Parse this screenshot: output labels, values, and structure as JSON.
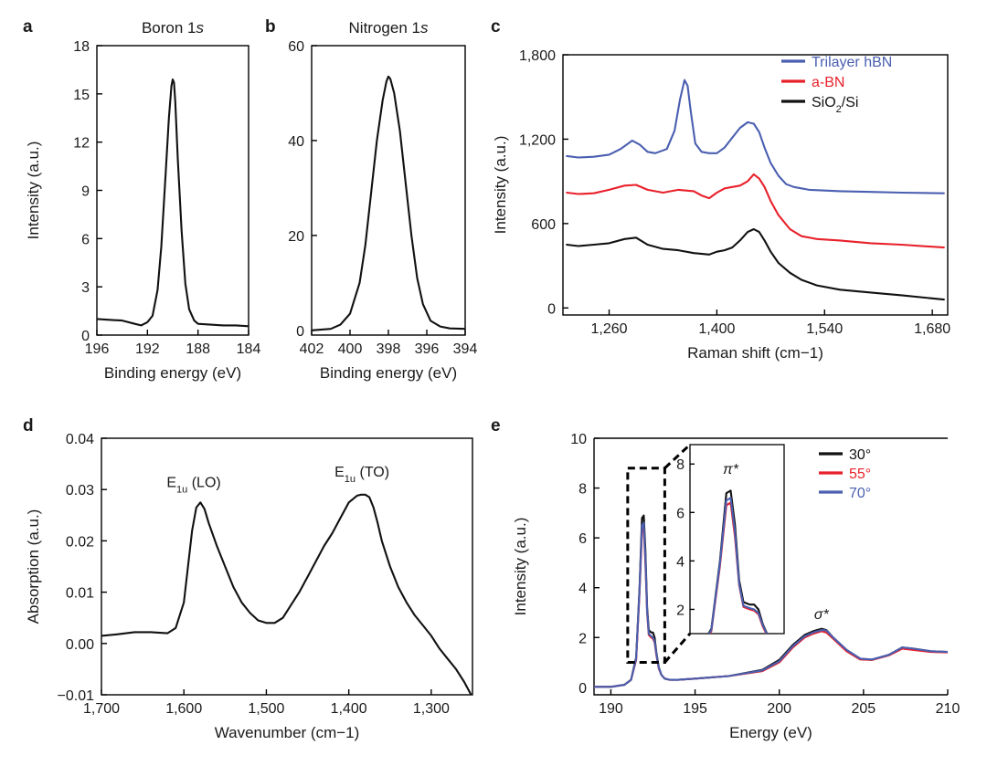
{
  "colors": {
    "black": "#111111",
    "red": "#e8212b",
    "blue": "#4a5fb0"
  },
  "chart_data": [
    {
      "id": "a",
      "panel_label": "a",
      "type": "line",
      "title_plain": "Boron 1",
      "title_italic": "s",
      "xlabel": "Binding energy (eV)",
      "ylabel": "Intensity (a.u.)",
      "xlim": [
        196,
        184
      ],
      "ylim": [
        0,
        18
      ],
      "xticks": [
        196,
        192,
        188,
        184
      ],
      "xtick_labels": [
        "196",
        "192",
        "188",
        "184"
      ],
      "yticks": [
        0,
        3,
        6,
        9,
        12,
        15,
        18
      ],
      "ytick_labels": [
        "0",
        "3",
        "6",
        "9",
        "12",
        "15",
        "18"
      ],
      "series": [
        {
          "name": "B 1s",
          "color": "#111111",
          "x": [
            196.0,
            195.0,
            194.0,
            193.0,
            192.5,
            192.0,
            191.6,
            191.2,
            190.9,
            190.6,
            190.3,
            190.1,
            190.0,
            189.9,
            189.8,
            189.6,
            189.3,
            189.0,
            188.7,
            188.3,
            188.0,
            187.0,
            186.0,
            185.0,
            184.0
          ],
          "y": [
            1.0,
            0.95,
            0.9,
            0.7,
            0.6,
            0.8,
            1.2,
            2.8,
            5.5,
            9.5,
            13.5,
            15.5,
            15.9,
            15.7,
            14.5,
            11.0,
            6.5,
            3.2,
            1.6,
            0.9,
            0.7,
            0.65,
            0.6,
            0.6,
            0.55
          ]
        }
      ]
    },
    {
      "id": "b",
      "panel_label": "b",
      "type": "line",
      "title_plain": "Nitrogen 1",
      "title_italic": "s",
      "xlabel": "Binding energy (eV)",
      "ylabel": "",
      "xlim": [
        402,
        394
      ],
      "ylim": [
        -1,
        60
      ],
      "xticks": [
        402,
        400,
        398,
        396,
        394
      ],
      "xtick_labels": [
        "402",
        "400",
        "398",
        "396",
        "394"
      ],
      "yticks": [
        0,
        20,
        40,
        60
      ],
      "ytick_labels": [
        "0",
        "20",
        "40",
        "60"
      ],
      "series": [
        {
          "name": "N 1s",
          "color": "#111111",
          "x": [
            402.0,
            401.0,
            400.5,
            400.0,
            399.5,
            399.2,
            398.9,
            398.6,
            398.3,
            398.1,
            398.0,
            397.9,
            397.7,
            397.4,
            397.1,
            396.8,
            396.5,
            396.2,
            395.8,
            395.3,
            394.8,
            394.0
          ],
          "y": [
            0.0,
            0.3,
            1.2,
            3.5,
            10.0,
            18.0,
            29.0,
            40.0,
            48.5,
            52.5,
            53.5,
            53.0,
            50.0,
            42.0,
            31.0,
            20.0,
            11.0,
            5.5,
            2.0,
            0.8,
            0.4,
            0.3
          ]
        }
      ]
    },
    {
      "id": "c",
      "panel_label": "c",
      "type": "line",
      "title": "",
      "xlabel": "Raman shift (cm−1)",
      "ylabel": "Intensity (a.u.)",
      "xlim": [
        1200,
        1700
      ],
      "ylim": [
        -50,
        1800
      ],
      "xticks": [
        1260,
        1400,
        1540,
        1680
      ],
      "xtick_labels": [
        "1,260",
        "1,400",
        "1,540",
        "1,680"
      ],
      "yticks": [
        0,
        600,
        1200,
        1800
      ],
      "ytick_labels": [
        "0",
        "600",
        "1,200",
        "1,800"
      ],
      "legend": {
        "position": "top-right",
        "entries": [
          {
            "label": "Trilayer hBN",
            "color": "#4a5fb0",
            "sub": ""
          },
          {
            "label": "a-BN",
            "color": "#e8212b",
            "sub": ""
          },
          {
            "label": "SiO",
            "color": "#111111",
            "sub": "2",
            "suffix": "/Si"
          }
        ]
      },
      "series": [
        {
          "name": "Trilayer hBN",
          "color": "#4a5fb0",
          "x": [
            1205,
            1220,
            1240,
            1260,
            1275,
            1290,
            1300,
            1310,
            1320,
            1335,
            1345,
            1352,
            1358,
            1362,
            1366,
            1372,
            1380,
            1390,
            1400,
            1410,
            1420,
            1430,
            1440,
            1448,
            1455,
            1462,
            1470,
            1480,
            1490,
            1500,
            1520,
            1560,
            1600,
            1640,
            1695
          ],
          "y": [
            1080,
            1070,
            1075,
            1090,
            1130,
            1190,
            1160,
            1110,
            1100,
            1130,
            1260,
            1480,
            1620,
            1580,
            1400,
            1170,
            1110,
            1100,
            1100,
            1140,
            1210,
            1280,
            1320,
            1310,
            1250,
            1140,
            1030,
            940,
            880,
            860,
            840,
            830,
            825,
            820,
            815
          ]
        },
        {
          "name": "a-BN",
          "color": "#e8212b",
          "x": [
            1205,
            1220,
            1240,
            1260,
            1280,
            1295,
            1310,
            1330,
            1350,
            1370,
            1380,
            1390,
            1400,
            1410,
            1420,
            1430,
            1440,
            1448,
            1455,
            1462,
            1470,
            1480,
            1495,
            1510,
            1530,
            1560,
            1600,
            1640,
            1695
          ],
          "y": [
            820,
            810,
            815,
            840,
            870,
            875,
            840,
            820,
            840,
            830,
            800,
            780,
            820,
            850,
            860,
            870,
            900,
            950,
            920,
            860,
            760,
            660,
            560,
            510,
            490,
            480,
            460,
            450,
            430
          ]
        },
        {
          "name": "SiO2/Si",
          "color": "#111111",
          "x": [
            1205,
            1220,
            1240,
            1260,
            1280,
            1295,
            1310,
            1330,
            1350,
            1370,
            1390,
            1400,
            1410,
            1420,
            1430,
            1440,
            1448,
            1455,
            1462,
            1470,
            1480,
            1495,
            1510,
            1530,
            1560,
            1600,
            1640,
            1695
          ],
          "y": [
            450,
            440,
            450,
            460,
            490,
            500,
            450,
            420,
            410,
            390,
            380,
            400,
            410,
            430,
            480,
            540,
            560,
            540,
            480,
            400,
            320,
            250,
            200,
            160,
            130,
            110,
            90,
            60
          ]
        }
      ]
    },
    {
      "id": "d",
      "panel_label": "d",
      "type": "line",
      "title": "",
      "xlabel": "Wavenumber (cm−1)",
      "ylabel": "Absorption (a.u.)",
      "xlim": [
        1700,
        1250
      ],
      "ylim": [
        -0.01,
        0.04
      ],
      "xticks": [
        1700,
        1600,
        1500,
        1400,
        1300
      ],
      "xtick_labels": [
        "1,700",
        "1,600",
        "1,500",
        "1,400",
        "1,300"
      ],
      "yticks": [
        -0.01,
        0,
        0.01,
        0.02,
        0.03,
        0.04
      ],
      "ytick_labels": [
        "−0.01",
        "0.00",
        "0.01",
        "0.02",
        "0.03",
        "0.04"
      ],
      "annotations": [
        {
          "text": "E",
          "sub": "1u",
          "suffix": " (LO)",
          "x": 1588,
          "y": 0.0305
        },
        {
          "text": "E",
          "sub": "1u",
          "suffix": " (TO)",
          "x": 1384,
          "y": 0.0325
        }
      ],
      "series": [
        {
          "name": "absorption",
          "color": "#111111",
          "x": [
            1700,
            1680,
            1660,
            1640,
            1620,
            1610,
            1600,
            1595,
            1590,
            1585,
            1580,
            1575,
            1570,
            1560,
            1550,
            1540,
            1530,
            1520,
            1510,
            1500,
            1490,
            1480,
            1470,
            1460,
            1450,
            1440,
            1430,
            1420,
            1410,
            1400,
            1390,
            1385,
            1380,
            1375,
            1370,
            1365,
            1360,
            1350,
            1340,
            1330,
            1320,
            1310,
            1300,
            1290,
            1280,
            1270,
            1260,
            1250
          ],
          "y": [
            0.0015,
            0.0018,
            0.0022,
            0.0022,
            0.002,
            0.003,
            0.008,
            0.015,
            0.022,
            0.0265,
            0.0275,
            0.0262,
            0.0235,
            0.019,
            0.015,
            0.011,
            0.008,
            0.006,
            0.0045,
            0.004,
            0.004,
            0.005,
            0.0075,
            0.01,
            0.013,
            0.016,
            0.019,
            0.0215,
            0.0245,
            0.0275,
            0.0288,
            0.029,
            0.029,
            0.0285,
            0.0265,
            0.0235,
            0.02,
            0.015,
            0.011,
            0.008,
            0.0055,
            0.0035,
            0.0015,
            -0.001,
            -0.003,
            -0.005,
            -0.0075,
            -0.0105
          ]
        }
      ]
    },
    {
      "id": "e",
      "panel_label": "e",
      "type": "line",
      "title": "",
      "xlabel": "Energy (eV)",
      "ylabel": "Intensity (a.u.)",
      "xlim": [
        189,
        210
      ],
      "ylim": [
        -0.3,
        10
      ],
      "xticks": [
        190,
        195,
        200,
        205,
        210
      ],
      "xtick_labels": [
        "190",
        "195",
        "200",
        "205",
        "210"
      ],
      "yticks": [
        0,
        2,
        4,
        6,
        8,
        10
      ],
      "ytick_labels": [
        "0",
        "2",
        "4",
        "6",
        "8",
        "10"
      ],
      "legend": {
        "position": "top-right",
        "entries": [
          {
            "label": "30°",
            "color": "#111111"
          },
          {
            "label": "55°",
            "color": "#e8212b"
          },
          {
            "label": "70°",
            "color": "#4a5fb0"
          }
        ]
      },
      "annotations": [
        {
          "symbol": "σ*",
          "x": 202.5,
          "y": 2.75
        }
      ],
      "inset": {
        "xlim": [
          191.0,
          193.2
        ],
        "ylim": [
          1.0,
          8.8
        ],
        "yticks": [
          2,
          4,
          6,
          8
        ],
        "ytick_labels": [
          "2",
          "4",
          "6",
          "8"
        ],
        "annotation": {
          "symbol": "π*",
          "x": 191.95,
          "y": 7.6
        }
      },
      "series": [
        {
          "name": "30°",
          "color": "#111111",
          "x": [
            189.0,
            190.0,
            190.8,
            191.2,
            191.5,
            191.7,
            191.85,
            191.95,
            192.05,
            192.15,
            192.25,
            192.4,
            192.5,
            192.6,
            192.7,
            192.85,
            193.0,
            193.2,
            193.5,
            194.0,
            195.0,
            197.0,
            199.0,
            200.0,
            200.8,
            201.5,
            202.0,
            202.5,
            202.8,
            203.2,
            204.0,
            204.8,
            205.5,
            206.5,
            207.3,
            208.0,
            209.0,
            210.0
          ],
          "y": [
            0.02,
            0.02,
            0.1,
            0.3,
            1.2,
            4.0,
            6.8,
            6.9,
            5.5,
            3.2,
            2.3,
            2.2,
            2.2,
            2.0,
            1.4,
            0.8,
            0.5,
            0.35,
            0.3,
            0.3,
            0.35,
            0.45,
            0.7,
            1.1,
            1.7,
            2.1,
            2.25,
            2.35,
            2.3,
            2.0,
            1.5,
            1.15,
            1.1,
            1.3,
            1.6,
            1.55,
            1.45,
            1.42
          ]
        },
        {
          "name": "55°",
          "color": "#e8212b",
          "x": [
            189.0,
            190.0,
            190.8,
            191.2,
            191.5,
            191.7,
            191.85,
            191.95,
            192.05,
            192.15,
            192.25,
            192.4,
            192.5,
            192.6,
            192.7,
            192.85,
            193.0,
            193.2,
            193.5,
            194.0,
            195.0,
            197.0,
            199.0,
            200.0,
            200.8,
            201.5,
            202.0,
            202.5,
            202.8,
            203.2,
            204.0,
            204.8,
            205.5,
            206.5,
            207.3,
            208.0,
            209.0,
            210.0
          ],
          "y": [
            0.02,
            0.02,
            0.1,
            0.3,
            1.1,
            3.8,
            6.3,
            6.4,
            5.0,
            3.0,
            2.1,
            2.0,
            1.95,
            1.8,
            1.3,
            0.75,
            0.5,
            0.35,
            0.3,
            0.3,
            0.35,
            0.45,
            0.65,
            1.0,
            1.6,
            2.0,
            2.15,
            2.25,
            2.2,
            1.95,
            1.45,
            1.12,
            1.1,
            1.28,
            1.55,
            1.5,
            1.42,
            1.4
          ]
        },
        {
          "name": "70°",
          "color": "#4a5fb0",
          "x": [
            189.0,
            190.0,
            190.8,
            191.2,
            191.5,
            191.7,
            191.85,
            191.95,
            192.05,
            192.15,
            192.25,
            192.4,
            192.5,
            192.6,
            192.7,
            192.85,
            193.0,
            193.2,
            193.5,
            194.0,
            195.0,
            197.0,
            199.0,
            200.0,
            200.8,
            201.5,
            202.0,
            202.5,
            202.8,
            203.2,
            204.0,
            204.8,
            205.5,
            206.5,
            207.3,
            208.0,
            209.0,
            210.0
          ],
          "y": [
            0.02,
            0.02,
            0.1,
            0.3,
            1.15,
            3.9,
            6.5,
            6.6,
            5.2,
            3.05,
            2.15,
            2.05,
            2.0,
            1.85,
            1.35,
            0.78,
            0.5,
            0.35,
            0.3,
            0.3,
            0.35,
            0.45,
            0.68,
            1.05,
            1.65,
            2.05,
            2.2,
            2.3,
            2.28,
            2.0,
            1.5,
            1.15,
            1.12,
            1.3,
            1.6,
            1.55,
            1.45,
            1.42
          ]
        }
      ]
    }
  ]
}
